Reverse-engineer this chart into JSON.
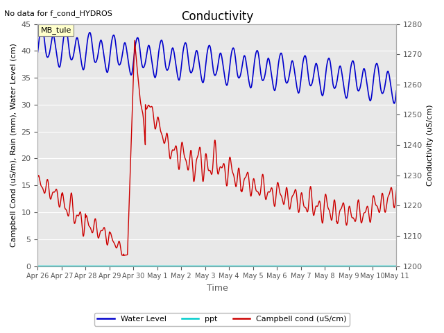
{
  "title": "Conductivity",
  "top_left_text": "No data for f_cond_HYDROS",
  "xlabel": "Time",
  "ylabel_left": "Campbell Cond (uS/m), Rain (mm), Water Level (cm)",
  "ylabel_right": "Conductivity (uS/cm)",
  "annotation_box": "MB_tule",
  "ylim_left": [
    0,
    45
  ],
  "ylim_right": [
    1200,
    1280
  ],
  "tick_labels_x": [
    "Apr 26",
    "Apr 27",
    "Apr 28",
    "Apr 29",
    "Apr 30",
    "May 1",
    "May 2",
    "May 3",
    "May 4",
    "May 5",
    "May 6",
    "May 7",
    "May 8",
    "May 9",
    "May 10",
    "May 11"
  ],
  "plot_bg_color": "#e8e8e8",
  "water_level_color": "#0000cc",
  "ppt_color": "#00cccc",
  "campbell_color": "#cc0000",
  "title_fontsize": 12,
  "label_fontsize": 8,
  "tick_fontsize": 7,
  "legend_entries": [
    "Water Level",
    "ppt",
    "Campbell cond (uS/cm)"
  ],
  "figsize": [
    6.4,
    4.8
  ],
  "dpi": 100
}
